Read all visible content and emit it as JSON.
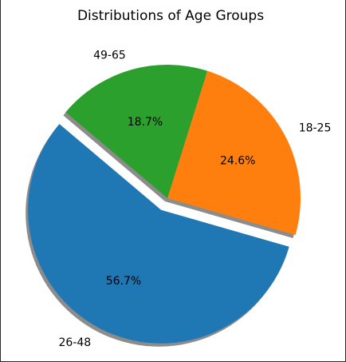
{
  "chart_data": {
    "type": "pie",
    "title": "Distributions of Age Groups",
    "labels": [
      "18-25",
      "49-65",
      "26-48"
    ],
    "values": [
      24.6,
      18.7,
      56.7
    ],
    "percent_labels": [
      "24.6%",
      "18.7%",
      "56.7%"
    ],
    "colors": [
      "#ff7f0e",
      "#2ca02c",
      "#1f77b4"
    ],
    "explode": [
      0,
      0,
      0.1
    ],
    "shadow": true,
    "start_angle_deg": -16
  }
}
